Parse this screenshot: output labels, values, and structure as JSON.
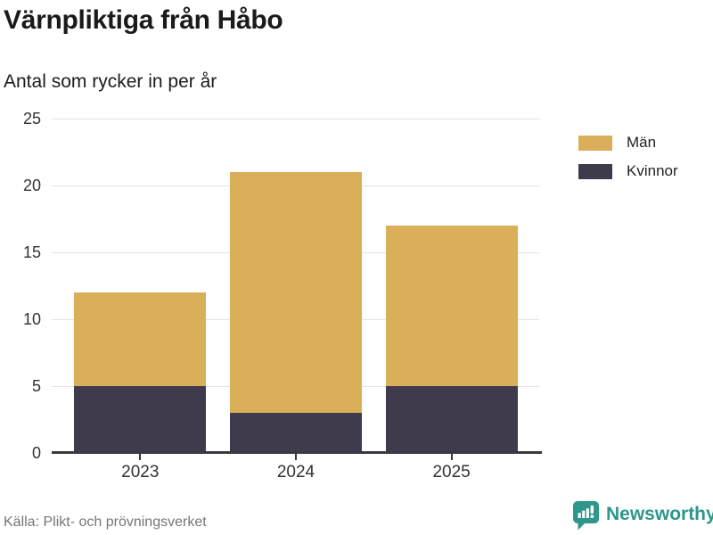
{
  "header": {
    "title": "Värnpliktiga från Håbo",
    "subtitle": "Antal som rycker in per år"
  },
  "chart_data": {
    "type": "bar",
    "stacked": true,
    "title": "Värnpliktiga från Håbo",
    "subtitle": "Antal som rycker in per år",
    "categories": [
      "2023",
      "2024",
      "2025"
    ],
    "series": [
      {
        "name": "Män",
        "color": "#DBAE5A",
        "values": [
          7,
          18,
          12
        ]
      },
      {
        "name": "Kvinnor",
        "color": "#403B4C",
        "values": [
          5,
          3,
          5
        ]
      }
    ],
    "stack_totals": [
      12,
      21,
      17
    ],
    "ylim": [
      0,
      25
    ],
    "yticks": [
      0,
      5,
      10,
      15,
      20,
      25
    ],
    "grid": true,
    "legend_position": "right"
  },
  "colors": {
    "gridline": "#e3e3e6",
    "axis": "#3c3843",
    "brand_teal": "#2e968a"
  },
  "footer": {
    "source": "Källa: Plikt- och prövningsverket",
    "brand": "Newsworthy"
  }
}
